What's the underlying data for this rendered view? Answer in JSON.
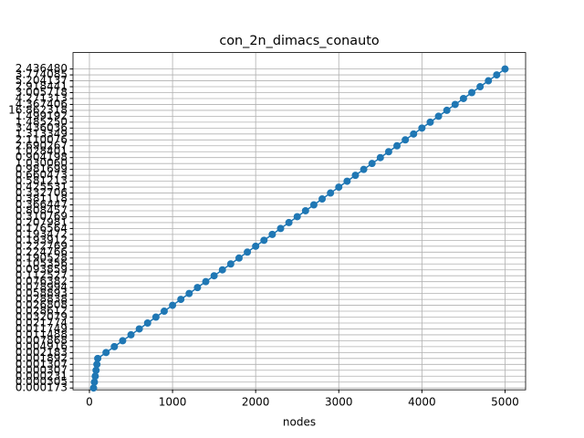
{
  "chart_data": {
    "type": "line",
    "title": "con_2n_dimacs_conauto",
    "xlabel": "nodes",
    "x": [
      50,
      60,
      70,
      80,
      90,
      100,
      200,
      300,
      400,
      500,
      600,
      700,
      800,
      900,
      1000,
      1100,
      1200,
      1300,
      1400,
      1500,
      1600,
      1700,
      1800,
      1900,
      2000,
      2100,
      2200,
      2300,
      2400,
      2500,
      2600,
      2700,
      2800,
      2900,
      3000,
      3100,
      3200,
      3300,
      3400,
      3500,
      3600,
      3700,
      3800,
      3900,
      4000,
      4100,
      4200,
      4300,
      4400,
      4500,
      4600,
      4700,
      4800,
      4900,
      5000
    ],
    "y": [
      "0.000173",
      "0.000305",
      "0.000231",
      "0.000307",
      "0.001307",
      "0.001892",
      "0.002183",
      "0.004916",
      "0.007868",
      "0.011488",
      "0.011749",
      "0.021774",
      "0.032079",
      "0.028612",
      "0.026808",
      "0.028838",
      "0.058893",
      "0.078994",
      "0.076382",
      "0.112527",
      "0.093859",
      "0.105356",
      "0.190528",
      "0.224766",
      "0.222769",
      "0.193912",
      "0.193472",
      "0.176564",
      "0.207981",
      "0.310769",
      "0.808457",
      "0.366447",
      "0.381118",
      "0.332706",
      "0.425531",
      "0.581213",
      "0.660473",
      "0.981699",
      "1.030060",
      "0.904198",
      "1.028401",
      "2.690267",
      "2.110076",
      "1.313349",
      "3.436036",
      "1.485250",
      "1.499192",
      "16.862318",
      "4.367406",
      "4.271313",
      "3.005718",
      "2.918441",
      "5.204137",
      "3.774085",
      "2.436480"
    ],
    "color": "#1f77b4",
    "xlim": [
      -197.5,
      5247.5
    ],
    "xticks": [
      0,
      1000,
      2000,
      3000,
      4000,
      5000
    ],
    "grid": true
  }
}
